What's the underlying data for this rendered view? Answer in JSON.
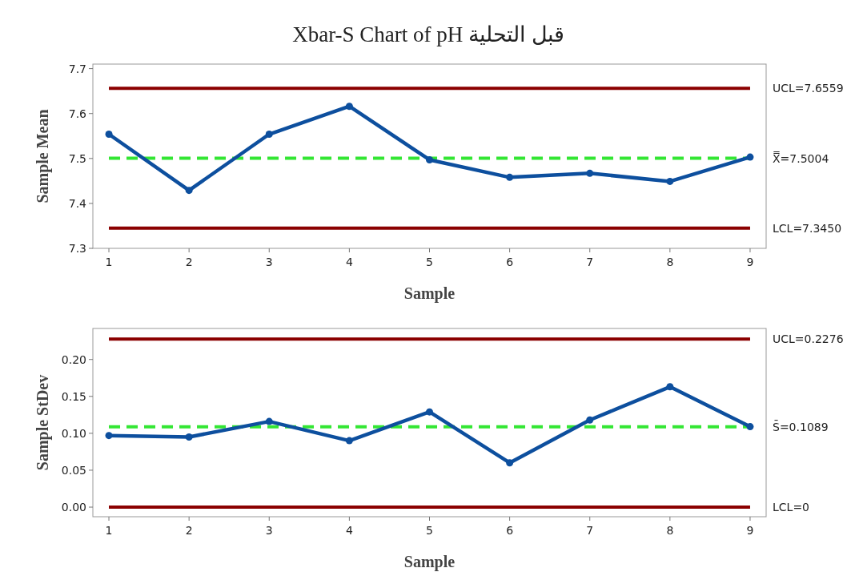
{
  "chart_data": [
    {
      "type": "line",
      "title": "Xbar-S Chart of pH قبل التحلية",
      "xlabel": "Sample",
      "ylabel": "Sample Mean",
      "x": [
        1,
        2,
        3,
        4,
        5,
        6,
        7,
        8,
        9
      ],
      "series": [
        {
          "color": "#0d4f9e",
          "values": [
            7.554,
            7.429,
            7.554,
            7.616,
            7.497,
            7.458,
            7.467,
            7.449,
            7.503
          ]
        }
      ],
      "xlim": [
        0.8,
        9.2
      ],
      "xticks": [
        1,
        2,
        3,
        4,
        5,
        6,
        7,
        8,
        9
      ],
      "ylim": [
        7.3,
        7.71
      ],
      "yticks": [
        7.3,
        7.4,
        7.5,
        7.6,
        7.7
      ],
      "marker": "circle",
      "line_style": "solid",
      "ref_lines": [
        {
          "axis": "y",
          "value": 7.6559,
          "label": "UCL=7.6559",
          "color": "#8b0000",
          "line_style": "solid"
        },
        {
          "axis": "y",
          "value": 7.5004,
          "label": "X̿=7.5004",
          "color": "#33e633",
          "line_style": "dashed"
        },
        {
          "axis": "y",
          "value": 7.345,
          "label": "LCL=7.3450",
          "color": "#8b0000",
          "line_style": "solid"
        }
      ]
    },
    {
      "type": "line",
      "xlabel": "Sample",
      "ylabel": "Sample StDev",
      "x": [
        1,
        2,
        3,
        4,
        5,
        6,
        7,
        8,
        9
      ],
      "series": [
        {
          "color": "#0d4f9e",
          "values": [
            0.097,
            0.095,
            0.116,
            0.09,
            0.129,
            0.06,
            0.118,
            0.163,
            0.109
          ]
        }
      ],
      "xlim": [
        0.8,
        9.2
      ],
      "xticks": [
        1,
        2,
        3,
        4,
        5,
        6,
        7,
        8,
        9
      ],
      "ylim": [
        -0.013,
        0.242
      ],
      "yticks": [
        {
          "value": 0,
          "label": "0.00"
        },
        {
          "value": 0.05,
          "label": "0.05"
        },
        {
          "value": 0.1,
          "label": "0.10"
        },
        {
          "value": 0.15,
          "label": "0.15"
        },
        {
          "value": 0.2,
          "label": "0.20"
        }
      ],
      "marker": "circle",
      "line_style": "solid",
      "ref_lines": [
        {
          "axis": "y",
          "value": 0.2276,
          "label": "UCL=0.2276",
          "color": "#8b0000",
          "line_style": "solid"
        },
        {
          "axis": "y",
          "value": 0.1089,
          "label": "S̄=0.1089",
          "color": "#33e633",
          "line_style": "dashed"
        },
        {
          "axis": "y",
          "value": 0,
          "label": "LCL=0",
          "color": "#8b0000",
          "line_style": "solid"
        }
      ]
    }
  ]
}
